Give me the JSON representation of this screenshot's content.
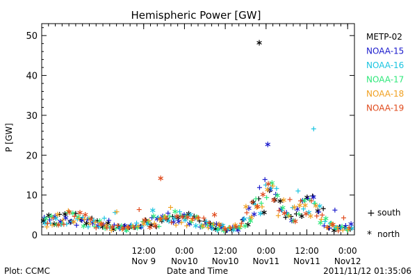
{
  "chart_data": {
    "type": "scatter",
    "title": "Hemispheric Power [GW]",
    "ylabel": "P [GW]",
    "xlabel": "Date and Time",
    "ylim": [
      0,
      53
    ],
    "xlim": [
      "2011-11-08T06:00",
      "2011-11-12T02:00"
    ],
    "yticks": [
      0,
      10,
      20,
      30,
      40,
      50
    ],
    "xticks": [
      {
        "time": "2011-11-09T12:00",
        "top": "12:00",
        "bottom": "Nov 9"
      },
      {
        "time": "2011-11-10T00:00",
        "top": "0:00",
        "bottom": "Nov10"
      },
      {
        "time": "2011-11-10T12:00",
        "top": "12:00",
        "bottom": "Nov10"
      },
      {
        "time": "2011-11-11T00:00",
        "top": "0:00",
        "bottom": "Nov11"
      },
      {
        "time": "2011-11-11T12:00",
        "top": "12:00",
        "bottom": "Nov11"
      },
      {
        "time": "2011-11-12T00:00",
        "top": "0:00",
        "bottom": "Nov12"
      }
    ],
    "legend_position": "right",
    "series": [
      {
        "name": "METP-02",
        "color": "#000000"
      },
      {
        "name": "NOAA-15",
        "color": "#1a1acc"
      },
      {
        "name": "NOAA-16",
        "color": "#19c4e0"
      },
      {
        "name": "NOAA-17",
        "color": "#2ee87a"
      },
      {
        "name": "NOAA-18",
        "color": "#f0a020"
      },
      {
        "name": "NOAA-19",
        "color": "#e04a1c"
      }
    ],
    "marker_legend": [
      {
        "symbol": "+",
        "label": "south"
      },
      {
        "symbol": "*",
        "label": "north"
      }
    ]
  },
  "footer": {
    "left": "Plot: CCMC",
    "right": "2011/11/12 01:35:06"
  }
}
